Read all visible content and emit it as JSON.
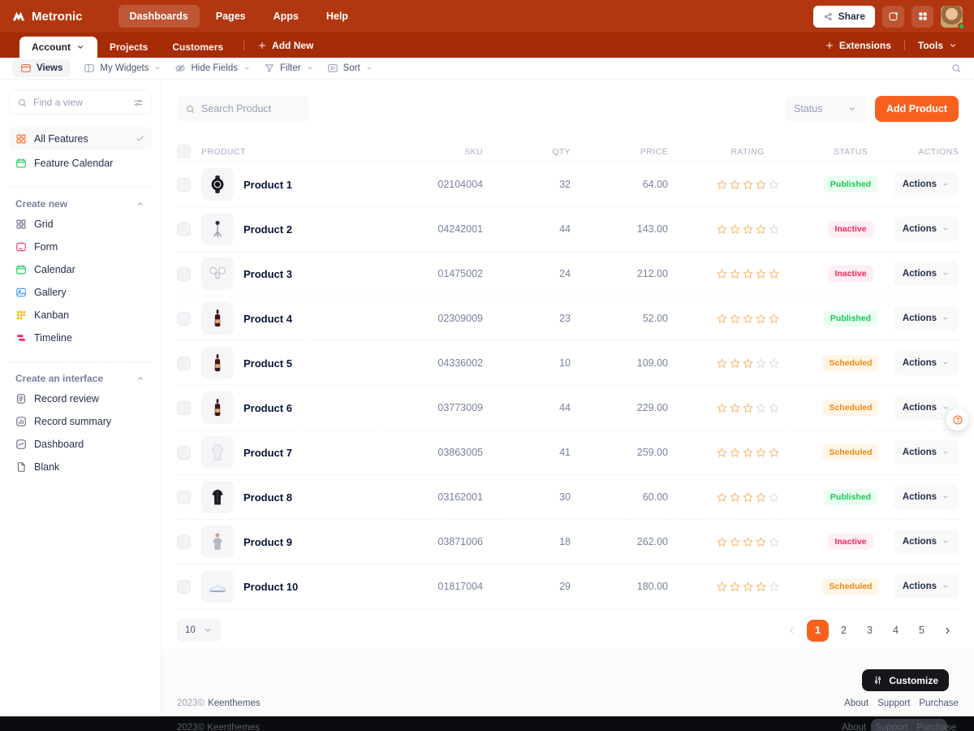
{
  "brand": {
    "name": "Metronic"
  },
  "header": {
    "nav": [
      {
        "label": "Dashboards",
        "active": true
      },
      {
        "label": "Pages",
        "active": false
      },
      {
        "label": "Apps",
        "active": false
      },
      {
        "label": "Help",
        "active": false
      }
    ],
    "share_label": "Share",
    "icon_buttons": [
      "activity-icon",
      "apps-grid-icon"
    ],
    "avatar_status": "online"
  },
  "tabbar": {
    "tabs": [
      {
        "label": "Account",
        "caret": true,
        "active": true
      },
      {
        "label": "Projects",
        "caret": false,
        "active": false
      },
      {
        "label": "Customers",
        "caret": false,
        "active": false
      }
    ],
    "add_new": "Add New",
    "extensions": "Extensions",
    "tools": "Tools"
  },
  "toolbar": {
    "views": "Views",
    "dropdowns": [
      {
        "label": "My Widgets",
        "icon": "columns"
      },
      {
        "label": "Hide Fields",
        "icon": "eye-off"
      },
      {
        "label": "Filter",
        "icon": "funnel"
      },
      {
        "label": "Sort",
        "icon": "list-lines"
      }
    ]
  },
  "sidebar": {
    "search_placeholder": "Find a view",
    "views": [
      {
        "label": "All Features",
        "icon": "grid",
        "icon_color": "#F6621E",
        "selected": true
      },
      {
        "label": "Feature Calendar",
        "icon": "calendar",
        "icon_color": "#17C653",
        "selected": false
      }
    ],
    "sections": [
      {
        "title": "Create new",
        "items": [
          {
            "label": "Grid",
            "icon": "grid",
            "icon_color": "#5E6278"
          },
          {
            "label": "Form",
            "icon": "form",
            "icon_color": "#F8285A"
          },
          {
            "label": "Calendar",
            "icon": "calendar",
            "icon_color": "#17C653"
          },
          {
            "label": "Gallery",
            "icon": "gallery",
            "icon_color": "#3E97FF"
          },
          {
            "label": "Kanban",
            "icon": "kanban",
            "icon_color": "#F6B100"
          },
          {
            "label": "Timeline",
            "icon": "timeline",
            "icon_color": "#F8285A"
          }
        ]
      },
      {
        "title": "Create an interface",
        "items": [
          {
            "label": "Record review",
            "icon": "doc-lines",
            "icon_color": "#5E6278"
          },
          {
            "label": "Record summary",
            "icon": "chart-bars",
            "icon_color": "#5E6278"
          },
          {
            "label": "Dashboard",
            "icon": "chart-wave",
            "icon_color": "#5E6278"
          },
          {
            "label": "Blank",
            "icon": "page-blank",
            "icon_color": "#5E6278"
          }
        ]
      }
    ]
  },
  "content": {
    "search_placeholder": "Search Product",
    "status_label": "Status",
    "add_product_label": "Add Product",
    "table": {
      "columns": [
        "PRODUCT",
        "SKU",
        "QTY",
        "PRICE",
        "RATING",
        "STATUS",
        "ACTIONS"
      ],
      "actions_label": "Actions",
      "rows": [
        {
          "name": "Product 1",
          "image": "smartwatch",
          "sku": "02104004",
          "qty": "32",
          "price": "64.00",
          "rating": 4,
          "status": "Published",
          "status_color": "green"
        },
        {
          "name": "Product 2",
          "image": "gimbal",
          "sku": "04242001",
          "qty": "44",
          "price": "143.00",
          "rating": 4,
          "status": "Inactive",
          "status_color": "red"
        },
        {
          "name": "Product 3",
          "image": "drone",
          "sku": "01475002",
          "qty": "24",
          "price": "212.00",
          "rating": 5,
          "status": "Inactive",
          "status_color": "red"
        },
        {
          "name": "Product 4",
          "image": "wine-bottle",
          "sku": "02309009",
          "qty": "23",
          "price": "52.00",
          "rating": 5,
          "status": "Published",
          "status_color": "green"
        },
        {
          "name": "Product 5",
          "image": "wine-bottle",
          "sku": "04336002",
          "qty": "10",
          "price": "109.00",
          "rating": 3,
          "status": "Scheduled",
          "status_color": "orange"
        },
        {
          "name": "Product 6",
          "image": "wine-bottle",
          "sku": "03773009",
          "qty": "44",
          "price": "229.00",
          "rating": 3,
          "status": "Scheduled",
          "status_color": "orange"
        },
        {
          "name": "Product 7",
          "image": "white-apparel",
          "sku": "03863005",
          "qty": "41",
          "price": "259.00",
          "rating": 5,
          "status": "Scheduled",
          "status_color": "orange"
        },
        {
          "name": "Product 8",
          "image": "black-jacket",
          "sku": "03162001",
          "qty": "30",
          "price": "60.00",
          "rating": 4,
          "status": "Published",
          "status_color": "green"
        },
        {
          "name": "Product 9",
          "image": "grey-outfit",
          "sku": "03871006",
          "qty": "18",
          "price": "262.00",
          "rating": 4,
          "status": "Inactive",
          "status_color": "red"
        },
        {
          "name": "Product 10",
          "image": "sneaker",
          "sku": "01817004",
          "qty": "29",
          "price": "180.00",
          "rating": 4,
          "status": "Scheduled",
          "status_color": "orange"
        }
      ]
    },
    "pagination": {
      "page_size": "10",
      "pages": [
        "1",
        "2",
        "3",
        "4",
        "5"
      ],
      "active_page": "1"
    }
  },
  "footer": {
    "copyright": "2023©",
    "company": "Keenthemes",
    "links": [
      "About",
      "Support",
      "Purchase"
    ],
    "customize_label": "Customize"
  },
  "colors": {
    "accent": "#F6621E",
    "header_bar": "#B23710",
    "tab_bar": "#A62C07",
    "published": "#17C653",
    "published_bg": "#EAFFF1",
    "inactive": "#F8285A",
    "inactive_bg": "#FFEEF3",
    "scheduled": "#F6870F",
    "scheduled_bg": "#FFF6E8",
    "star_filled": "#F9B871",
    "star_empty": "#D8DEE9"
  }
}
